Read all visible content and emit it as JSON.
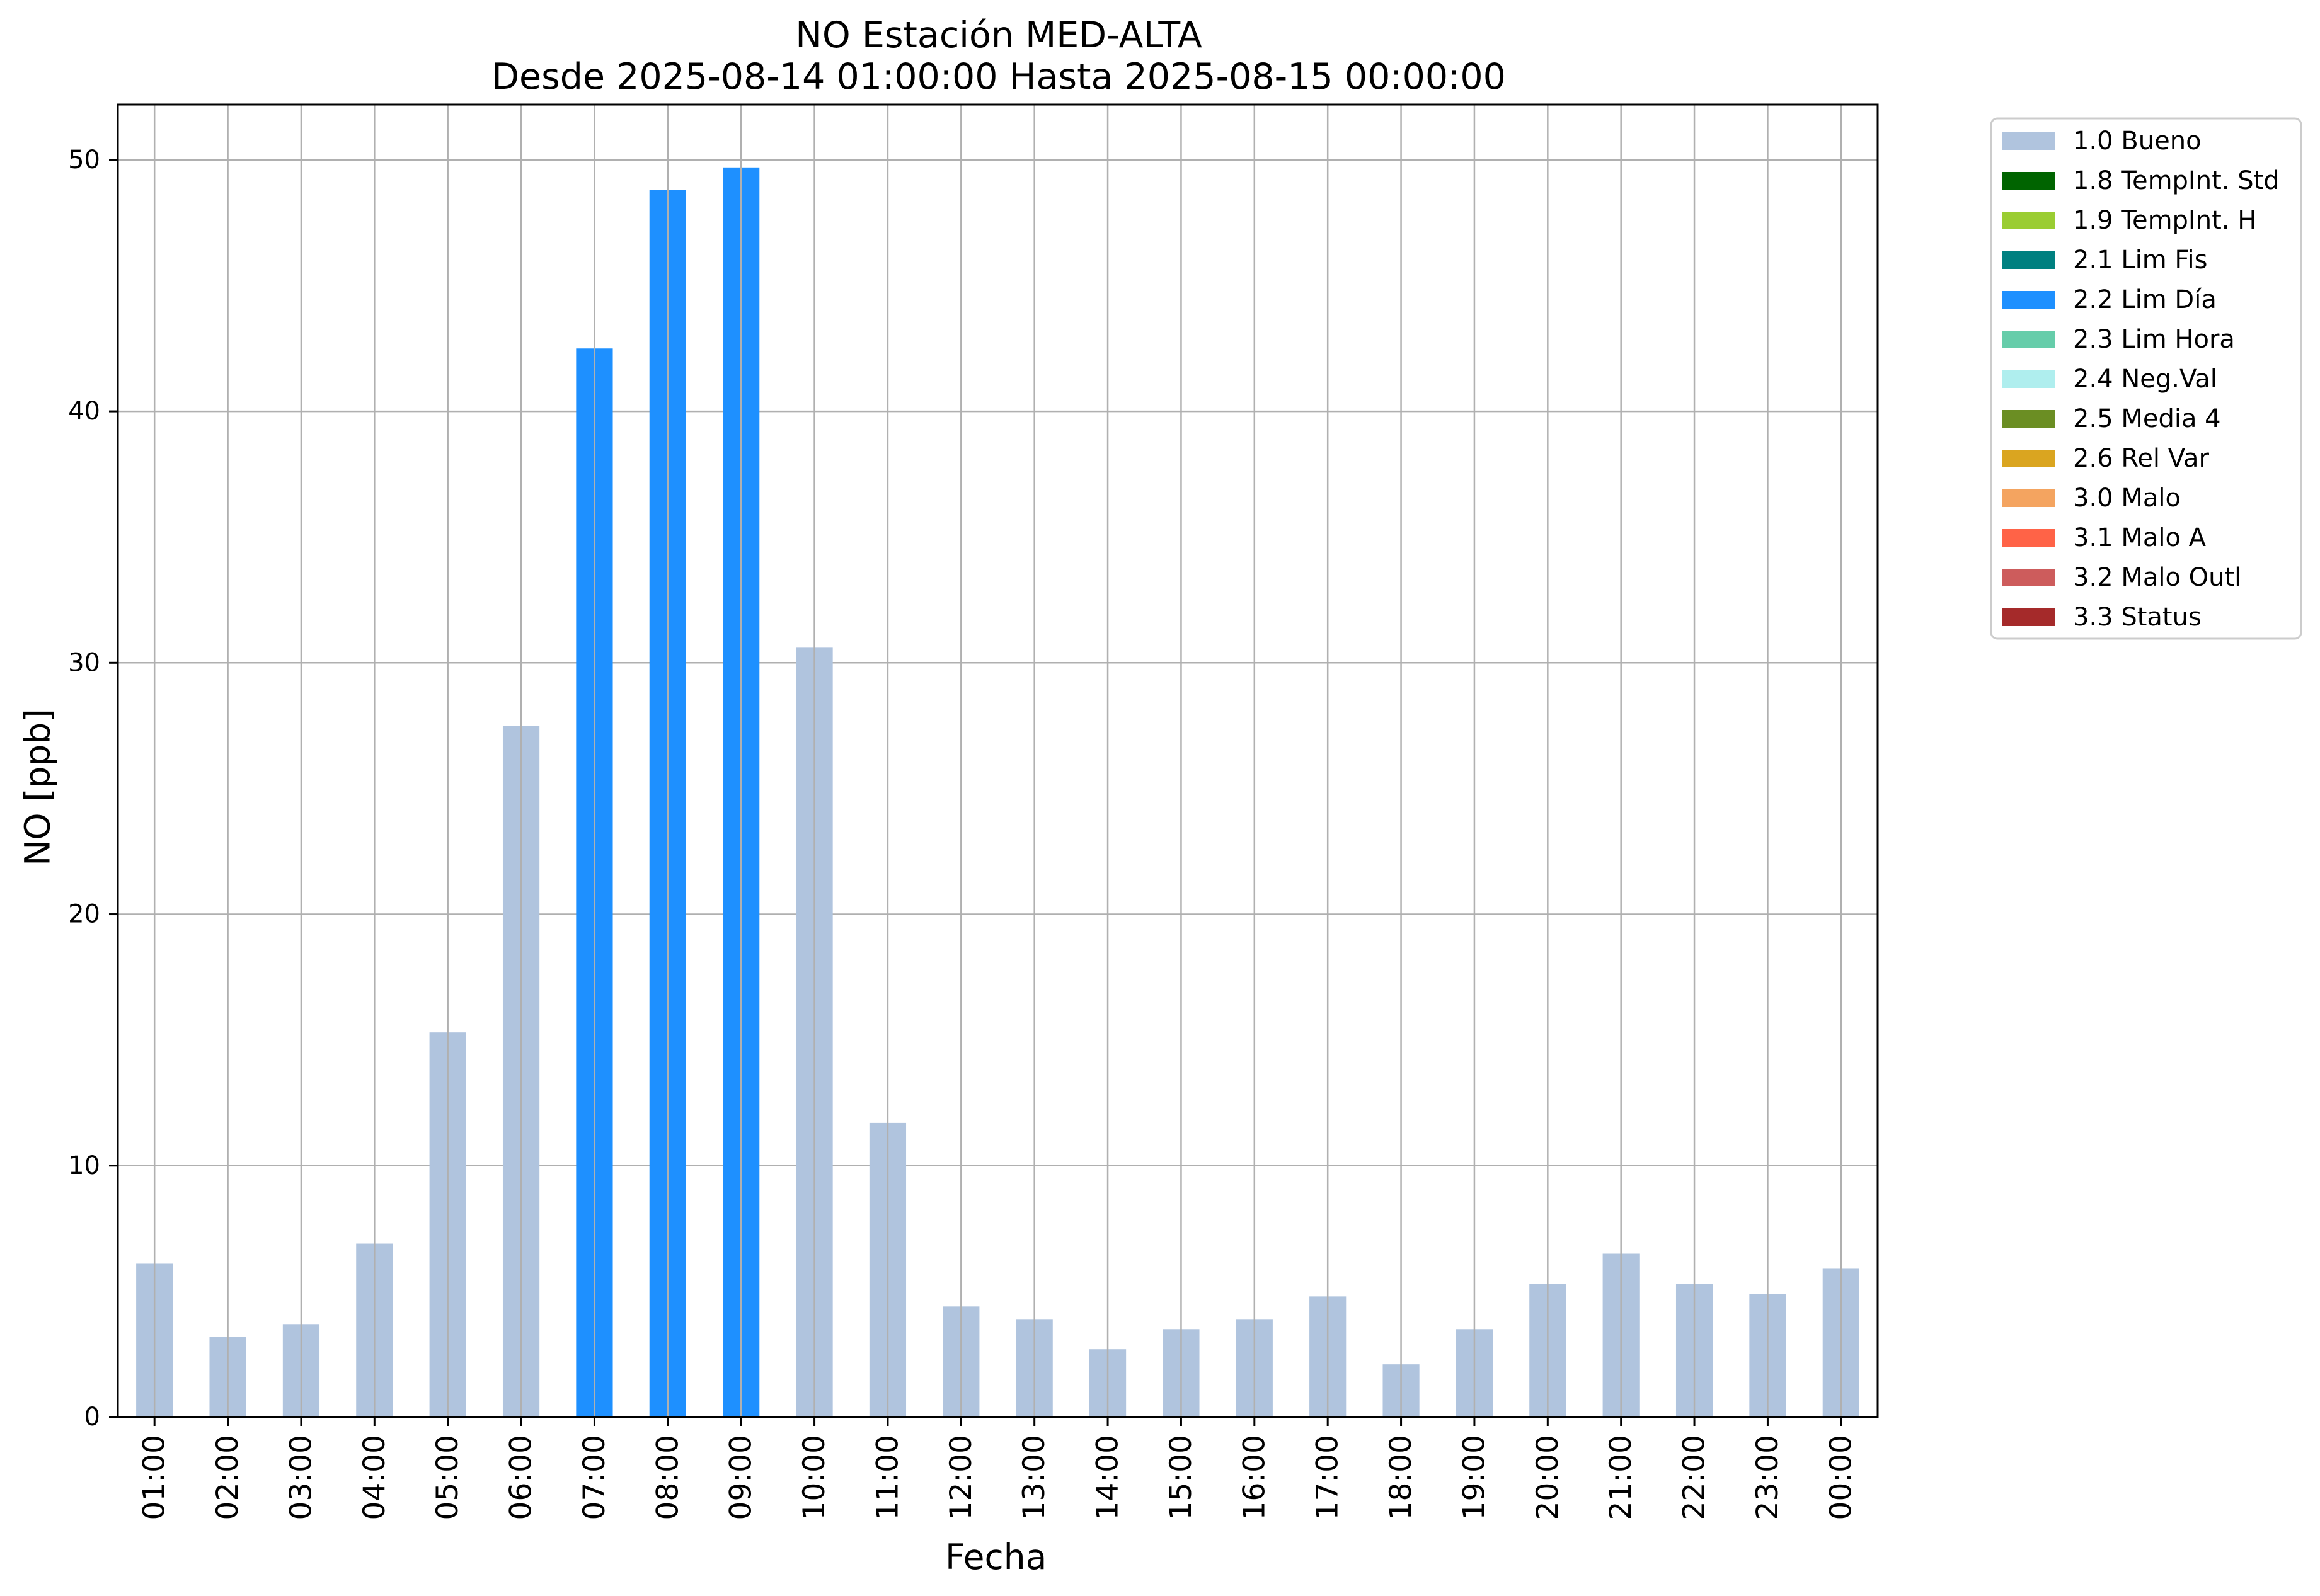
{
  "chart_data": {
    "type": "bar",
    "title": "NO Estación MED-ALTA",
    "subtitle": "Desde 2025-08-14 01:00:00 Hasta 2025-08-15 00:00:00",
    "xlabel": "Fecha",
    "ylabel": "NO [ppb]",
    "ylim": [
      0,
      52.2
    ],
    "yticks": [
      0,
      10,
      20,
      30,
      40,
      50
    ],
    "grid": true,
    "legend_position": "outside-top-right",
    "categories": [
      "01:00",
      "02:00",
      "03:00",
      "04:00",
      "05:00",
      "06:00",
      "07:00",
      "08:00",
      "09:00",
      "10:00",
      "11:00",
      "12:00",
      "13:00",
      "14:00",
      "15:00",
      "16:00",
      "17:00",
      "18:00",
      "19:00",
      "20:00",
      "21:00",
      "22:00",
      "23:00",
      "00:00"
    ],
    "values": [
      6.1,
      3.2,
      3.7,
      6.9,
      15.3,
      27.5,
      42.5,
      48.8,
      49.7,
      30.6,
      11.7,
      4.4,
      3.9,
      2.7,
      3.5,
      3.9,
      4.8,
      2.1,
      3.5,
      5.3,
      6.5,
      5.3,
      4.9,
      5.9
    ],
    "flags": [
      "1.0 Bueno",
      "1.0 Bueno",
      "1.0 Bueno",
      "1.0 Bueno",
      "1.0 Bueno",
      "1.0 Bueno",
      "2.2 Lim Día",
      "2.2 Lim Día",
      "2.2 Lim Día",
      "1.0 Bueno",
      "1.0 Bueno",
      "1.0 Bueno",
      "1.0 Bueno",
      "1.0 Bueno",
      "1.0 Bueno",
      "1.0 Bueno",
      "1.0 Bueno",
      "1.0 Bueno",
      "1.0 Bueno",
      "1.0 Bueno",
      "1.0 Bueno",
      "1.0 Bueno",
      "1.0 Bueno",
      "1.0 Bueno"
    ],
    "legend": [
      {
        "name": "1.0 Bueno",
        "color": "#b0c4de"
      },
      {
        "name": "1.8 TempInt. Std",
        "color": "#006400"
      },
      {
        "name": "1.9 TempInt. H",
        "color": "#9acd32"
      },
      {
        "name": "2.1 Lim Fis",
        "color": "#008080"
      },
      {
        "name": "2.2 Lim Día",
        "color": "#1e90ff"
      },
      {
        "name": "2.3 Lim Hora",
        "color": "#66cdaa"
      },
      {
        "name": "2.4 Neg.Val",
        "color": "#afeeee"
      },
      {
        "name": "2.5 Media 4",
        "color": "#6b8e23"
      },
      {
        "name": "2.6 Rel Var",
        "color": "#daa520"
      },
      {
        "name": "3.0 Malo",
        "color": "#f4a460"
      },
      {
        "name": "3.1 Malo A",
        "color": "#ff6347"
      },
      {
        "name": "3.2 Malo Outl",
        "color": "#cd5c5c"
      },
      {
        "name": "3.3 Status",
        "color": "#a52a2a"
      }
    ]
  }
}
